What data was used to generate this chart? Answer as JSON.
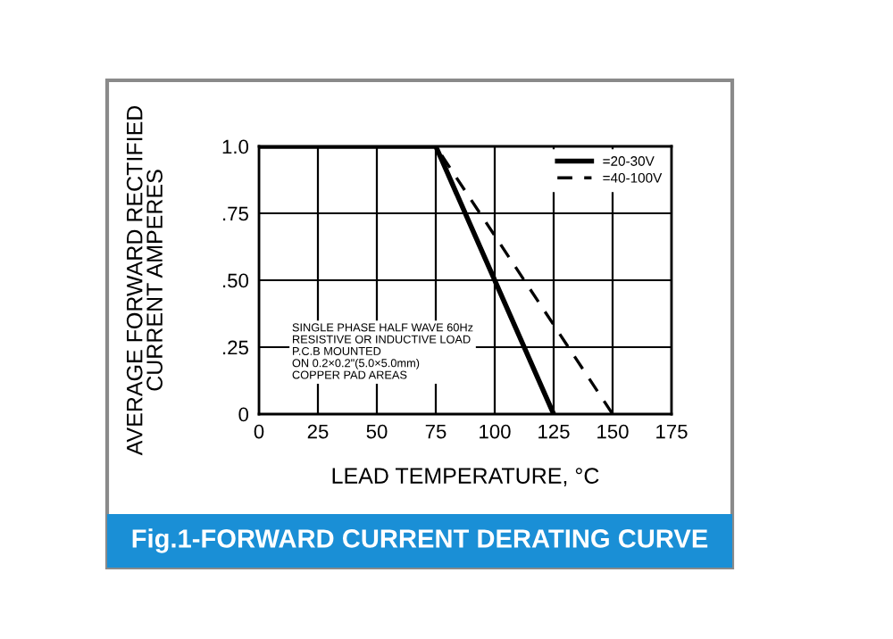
{
  "chart_data": {
    "type": "line",
    "title": "Fig.1-FORWARD CURRENT DERATING CURVE",
    "xlabel": "LEAD TEMPERATURE, °C",
    "ylabel": "AVERAGE FORWARD RECTIFIED\nCURRENT AMPERES",
    "series": [
      {
        "name": "=20-30V",
        "color": "#000000",
        "line_style": "solid",
        "x": [
          0,
          75,
          125
        ],
        "values": [
          1.0,
          1.0,
          0
        ]
      },
      {
        "name": "=40-100V",
        "color": "#000000",
        "line_style": "dashed",
        "x": [
          0,
          75,
          150
        ],
        "values": [
          1.0,
          1.0,
          0
        ]
      }
    ],
    "xlim": [
      0,
      175
    ],
    "xticks": [
      0,
      25,
      50,
      75,
      100,
      125,
      150,
      175
    ],
    "ylim": [
      0,
      1.0
    ],
    "yticks": [
      0,
      {
        "value": 0.25,
        "label": ".25"
      },
      {
        "value": 0.5,
        "label": ".50"
      },
      {
        "value": 0.75,
        "label": ".75"
      },
      {
        "value": 1.0,
        "label": "1.0"
      }
    ],
    "grid": true,
    "legend": "top right",
    "marker": "none",
    "annotations": [
      "SINGLE PHASE HALF WAVE 60Hz\nRESISTIVE OR INDUCTIVE LOAD\nP.C.B MOUNTED\nON 0.2×0.2\"(5.0×5.0mm)\nCOPPER PAD AREAS"
    ]
  }
}
